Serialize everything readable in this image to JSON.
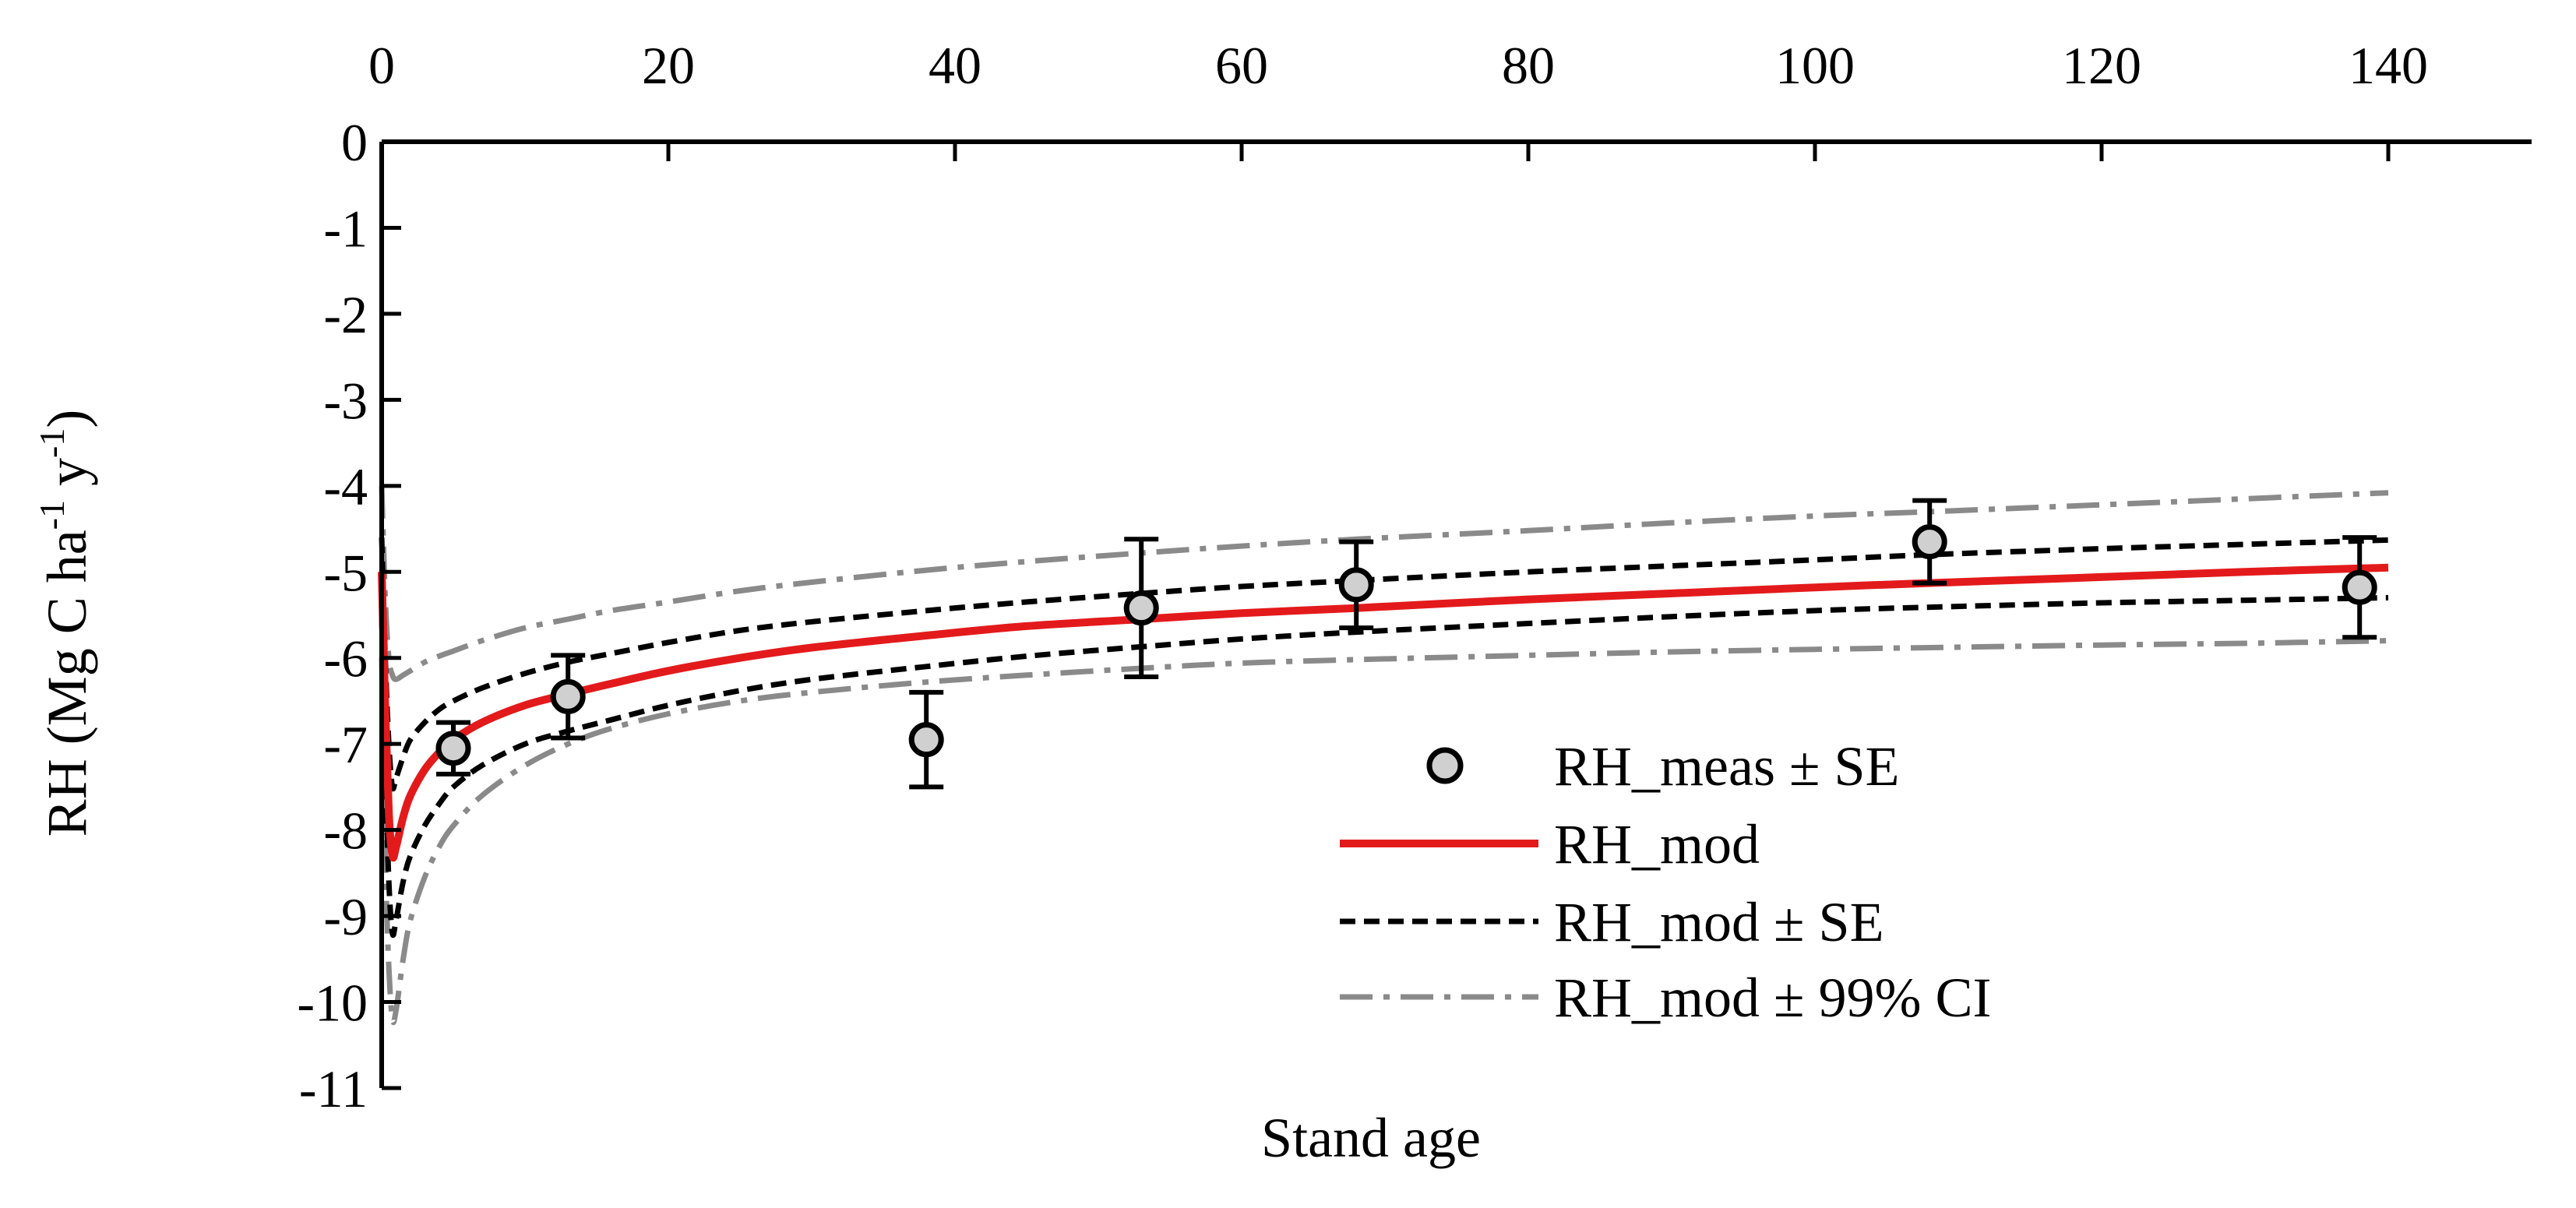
{
  "chart_data": {
    "type": "line",
    "title": "",
    "xlabel": "Stand age",
    "ylabel": "RH (Mg C ha",
    "ylabel_sup1": "-1",
    "ylabel_mid": " y",
    "ylabel_sup2": "-1",
    "ylabel_end": ")",
    "xlim": [
      0,
      150
    ],
    "ylim": [
      -11,
      0
    ],
    "x_axis_position": "top",
    "xticks": [
      0,
      20,
      40,
      60,
      80,
      100,
      120,
      140
    ],
    "yticks": [
      0,
      -1,
      -2,
      -3,
      -4,
      -5,
      -6,
      -7,
      -8,
      -9,
      -10,
      -11
    ],
    "xtick_labels": [
      "0",
      "20",
      "40",
      "60",
      "80",
      "100",
      "120",
      "140"
    ],
    "ytick_labels": [
      "0",
      "-1",
      "-2",
      "-3",
      "-4",
      "-5",
      "-6",
      "-7",
      "-8",
      "-9",
      "-10",
      "-11"
    ],
    "grid": false,
    "legend_position": "lower-right",
    "legend": [
      "RH_meas ± SE",
      "RH_mod",
      "RH_mod ± SE",
      "RH_mod ± 99% CI"
    ],
    "measured": {
      "name": "RH_meas ± SE",
      "x": [
        5,
        13,
        38,
        53,
        68,
        108,
        138
      ],
      "y": [
        -7.05,
        -6.45,
        -6.95,
        -5.42,
        -5.15,
        -4.65,
        -5.18
      ],
      "se": [
        0.3,
        0.48,
        0.55,
        0.8,
        0.5,
        0.48,
        0.58
      ],
      "color": "#d0d0d0"
    },
    "model": {
      "x": [
        0,
        0.25,
        0.5,
        0.75,
        1,
        1.5,
        2,
        3,
        4,
        5,
        7,
        10,
        13,
        16,
        20,
        25,
        30,
        38,
        45,
        53,
        60,
        68,
        80,
        90,
        100,
        108,
        120,
        130,
        140
      ],
      "series": [
        {
          "name": "RH_mod",
          "color": "#e31a1c",
          "y": [
            -5.0,
            -6.6,
            -7.8,
            -8.3,
            -8.2,
            -7.85,
            -7.6,
            -7.3,
            -7.1,
            -6.95,
            -6.75,
            -6.55,
            -6.42,
            -6.3,
            -6.15,
            -6.0,
            -5.88,
            -5.74,
            -5.63,
            -5.55,
            -5.48,
            -5.42,
            -5.32,
            -5.25,
            -5.18,
            -5.13,
            -5.06,
            -5.0,
            -4.95
          ]
        },
        {
          "name": "RH_mod + SE",
          "color": "#000000",
          "y": [
            -4.6,
            -6.0,
            -7.0,
            -7.5,
            -7.4,
            -7.15,
            -6.95,
            -6.75,
            -6.6,
            -6.5,
            -6.35,
            -6.18,
            -6.05,
            -5.95,
            -5.82,
            -5.68,
            -5.58,
            -5.45,
            -5.35,
            -5.25,
            -5.17,
            -5.1,
            -5.0,
            -4.93,
            -4.86,
            -4.8,
            -4.73,
            -4.68,
            -4.63
          ]
        },
        {
          "name": "RH_mod - SE",
          "color": "#000000",
          "y": [
            -5.5,
            -7.3,
            -8.6,
            -9.2,
            -9.05,
            -8.6,
            -8.3,
            -7.95,
            -7.7,
            -7.5,
            -7.25,
            -7.0,
            -6.85,
            -6.72,
            -6.55,
            -6.38,
            -6.25,
            -6.1,
            -5.98,
            -5.87,
            -5.78,
            -5.7,
            -5.6,
            -5.52,
            -5.45,
            -5.41,
            -5.36,
            -5.33,
            -5.3
          ]
        },
        {
          "name": "RH_mod + 99% CI",
          "color": "#8a8a8a",
          "y": [
            -4.0,
            -5.3,
            -6.0,
            -6.2,
            -6.25,
            -6.2,
            -6.15,
            -6.05,
            -5.98,
            -5.92,
            -5.8,
            -5.65,
            -5.55,
            -5.45,
            -5.35,
            -5.22,
            -5.12,
            -4.98,
            -4.88,
            -4.78,
            -4.7,
            -4.62,
            -4.52,
            -4.43,
            -4.35,
            -4.3,
            -4.22,
            -4.15,
            -4.08
          ]
        },
        {
          "name": "RH_mod - 99% CI",
          "color": "#8a8a8a",
          "y": [
            -6.0,
            -8.3,
            -9.6,
            -10.2,
            -10.1,
            -9.5,
            -9.05,
            -8.55,
            -8.2,
            -7.95,
            -7.6,
            -7.25,
            -7.0,
            -6.82,
            -6.65,
            -6.5,
            -6.4,
            -6.28,
            -6.2,
            -6.12,
            -6.06,
            -6.02,
            -5.97,
            -5.93,
            -5.9,
            -5.88,
            -5.85,
            -5.83,
            -5.8
          ]
        }
      ]
    }
  }
}
